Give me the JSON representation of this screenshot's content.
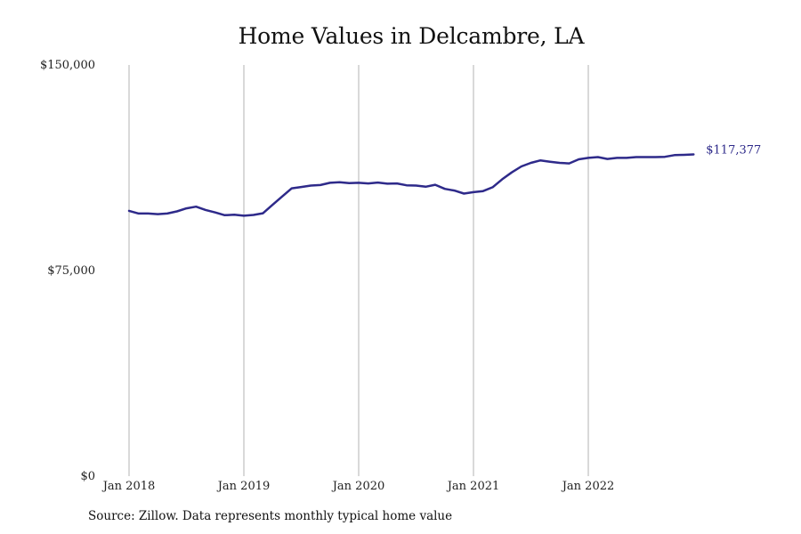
{
  "chart_data": {
    "type": "line",
    "title": "Home Values in Delcambre, LA",
    "x_tick_labels": [
      "Jan 2018",
      "Jan 2019",
      "Jan 2020",
      "Jan 2021",
      "Jan 2022"
    ],
    "y_tick_labels": [
      "$0",
      "$75,000",
      "$150,000"
    ],
    "y_ticks": [
      0,
      75000,
      150000
    ],
    "ylim": [
      0,
      150000
    ],
    "x_range": [
      "2018-01",
      "2022-12"
    ],
    "grid": "vertical lines at each January",
    "series": [
      {
        "x": [
          "2018-01",
          "2018-02",
          "2018-03",
          "2018-04",
          "2018-05",
          "2018-06",
          "2018-07",
          "2018-08",
          "2018-09",
          "2018-10",
          "2018-11",
          "2018-12",
          "2019-01",
          "2019-02",
          "2019-03",
          "2019-04",
          "2019-05",
          "2019-06",
          "2019-07",
          "2019-08",
          "2019-09",
          "2019-10",
          "2019-11",
          "2019-12",
          "2020-01",
          "2020-02",
          "2020-03",
          "2020-04",
          "2020-05",
          "2020-06",
          "2020-07",
          "2020-08",
          "2020-09",
          "2020-10",
          "2020-11",
          "2020-12",
          "2021-01",
          "2021-02",
          "2021-03",
          "2021-04",
          "2021-05",
          "2021-06",
          "2021-07",
          "2021-08",
          "2021-09",
          "2021-10",
          "2021-11",
          "2021-12",
          "2022-01",
          "2022-02",
          "2022-03",
          "2022-04",
          "2022-05",
          "2022-06",
          "2022-07",
          "2022-08",
          "2022-09",
          "2022-10",
          "2022-11",
          "2022-12"
        ],
        "values": [
          96800,
          95800,
          95800,
          95600,
          95800,
          96600,
          97700,
          98300,
          97100,
          96200,
          95200,
          95400,
          95000,
          95300,
          95900,
          99000,
          102000,
          105000,
          105500,
          106000,
          106200,
          107000,
          107200,
          106900,
          107000,
          106800,
          107100,
          106700,
          106800,
          106100,
          106000,
          105600,
          106300,
          104800,
          104200,
          103100,
          103600,
          104000,
          105400,
          108300,
          110800,
          113000,
          114300,
          115200,
          114700,
          114300,
          114100,
          115600,
          116100,
          116400,
          115700,
          116100,
          116100,
          116400,
          116400,
          116400,
          116500,
          117100,
          117200,
          117377
        ]
      }
    ],
    "end_value_label": "$117,377",
    "line_color": "#2e2a8a",
    "grid_color": "#b3b3b3"
  },
  "source_note": "Source: Zillow. Data represents monthly typical home value"
}
